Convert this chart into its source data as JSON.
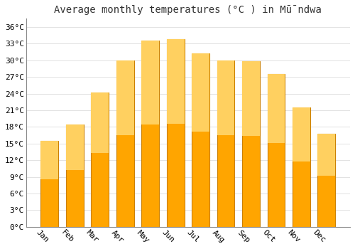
{
  "title": "Average monthly temperatures (°C ) in Mū̄ndwa",
  "months": [
    "Jan",
    "Feb",
    "Mar",
    "Apr",
    "May",
    "Jun",
    "Jul",
    "Aug",
    "Sep",
    "Oct",
    "Nov",
    "Dec"
  ],
  "values": [
    15.5,
    18.5,
    24.2,
    30.0,
    33.5,
    33.8,
    31.2,
    30.0,
    29.8,
    27.5,
    21.5,
    16.8
  ],
  "bar_color": "#FFA500",
  "bar_edge_color": "#CC8000",
  "bar_color_top": "#FFD060",
  "background_color": "#FFFFFF",
  "grid_color": "#DDDDDD",
  "yticks": [
    0,
    3,
    6,
    9,
    12,
    15,
    18,
    21,
    24,
    27,
    30,
    33,
    36
  ],
  "ylim": [
    0,
    37.5
  ],
  "title_fontsize": 10,
  "tick_fontsize": 8,
  "xlabel_rotation": -45,
  "bar_width": 0.7
}
